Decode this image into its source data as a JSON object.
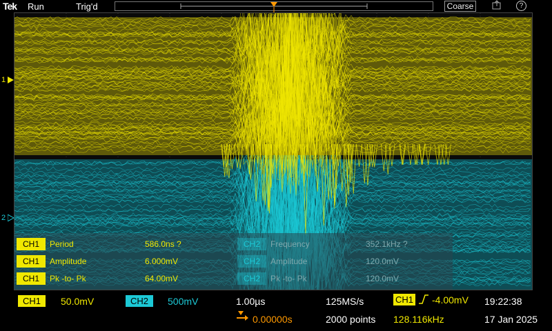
{
  "topbar": {
    "brand": "Tek",
    "run_state": "Run",
    "trigger_state": "Trig'd",
    "coarse_button": "Coarse",
    "trigger_marker_label": "T"
  },
  "channel_markers": {
    "ch1": "1",
    "ch2": "2"
  },
  "measurements": [
    {
      "channel": "CH1",
      "name": "Period",
      "value": "586.0ns ?"
    },
    {
      "channel": "CH1",
      "name": "Amplitude",
      "value": "6.000mV"
    },
    {
      "channel": "CH1",
      "name": "Pk -to- Pk",
      "value": "64.00mV"
    },
    {
      "channel": "CH2",
      "name": "Frequency",
      "value": "352.1kHz ?"
    },
    {
      "channel": "CH2",
      "name": "Amplitude",
      "value": "120.0mV"
    },
    {
      "channel": "CH2",
      "name": "Pk -to- Pk",
      "value": "120.0mV"
    }
  ],
  "bottombar": {
    "ch1_label": "CH1",
    "ch1_scale": "50.0mV",
    "ch2_label": "CH2",
    "ch2_scale": "500mV",
    "timebase": "1.00µs",
    "sample_rate": "125MS/s",
    "trigger_channel": "CH1",
    "trigger_level": "-4.00mV",
    "time": "19:22:38",
    "horizontal_position": "0.00000s",
    "record_length": "2000 points",
    "frequency_counter": "128.116kHz",
    "date": "17 Jan 2025"
  },
  "colors": {
    "ch1": "#f0e800",
    "ch2": "#1cc9d6",
    "trigger": "#ff9900"
  }
}
